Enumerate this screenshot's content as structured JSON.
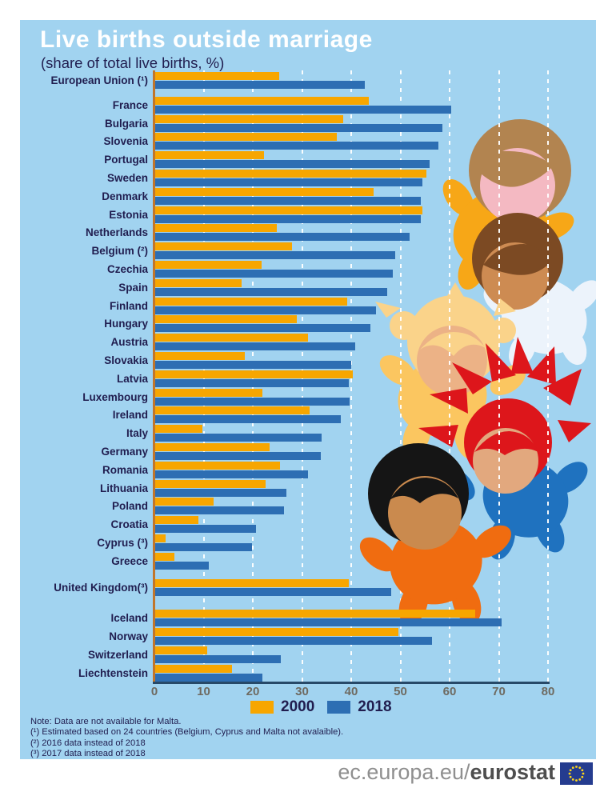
{
  "title": "Live births outside marriage",
  "subtitle": "(share of total live births, %)",
  "chart_data": {
    "type": "bar",
    "orientation": "horizontal",
    "title": "Live births outside marriage",
    "subtitle": "(share of total live births, %)",
    "xlim": [
      0,
      80
    ],
    "xticks": [
      0,
      10,
      20,
      30,
      40,
      50,
      60,
      70,
      80
    ],
    "gridlines": "white dashed vertical",
    "legend_position": "bottom",
    "series": [
      {
        "name": "2000",
        "color": "#f7a600"
      },
      {
        "name": "2018",
        "color": "#2d6eb3"
      }
    ],
    "rows": [
      {
        "label": "European Union (¹)",
        "v2000": 25.4,
        "v2018": 42.7
      },
      {
        "label": "France",
        "v2000": 43.6,
        "v2018": 60.4,
        "extra_gap": 8
      },
      {
        "label": "Bulgaria",
        "v2000": 38.4,
        "v2018": 58.5
      },
      {
        "label": "Slovenia",
        "v2000": 37.1,
        "v2018": 57.7
      },
      {
        "label": "Portugal",
        "v2000": 22.2,
        "v2018": 55.9
      },
      {
        "label": "Sweden",
        "v2000": 55.3,
        "v2018": 54.5
      },
      {
        "label": "Denmark",
        "v2000": 44.6,
        "v2018": 54.2
      },
      {
        "label": "Estonia",
        "v2000": 54.5,
        "v2018": 54.1
      },
      {
        "label": "Netherlands",
        "v2000": 24.9,
        "v2018": 51.9
      },
      {
        "label": "Belgium (²)",
        "v2000": 28.0,
        "v2018": 49.0
      },
      {
        "label": "Czechia",
        "v2000": 21.8,
        "v2018": 48.5
      },
      {
        "label": "Spain",
        "v2000": 17.7,
        "v2018": 47.3
      },
      {
        "label": "Finland",
        "v2000": 39.2,
        "v2018": 45.0
      },
      {
        "label": "Hungary",
        "v2000": 29.0,
        "v2018": 43.9
      },
      {
        "label": "Austria",
        "v2000": 31.3,
        "v2018": 40.8
      },
      {
        "label": "Slovakia",
        "v2000": 18.3,
        "v2018": 40.0
      },
      {
        "label": "Latvia",
        "v2000": 40.3,
        "v2018": 39.5
      },
      {
        "label": "Luxembourg",
        "v2000": 21.9,
        "v2018": 39.7
      },
      {
        "label": "Ireland",
        "v2000": 31.5,
        "v2018": 37.9
      },
      {
        "label": "Italy",
        "v2000": 9.7,
        "v2018": 34.0
      },
      {
        "label": "Germany",
        "v2000": 23.4,
        "v2018": 33.9
      },
      {
        "label": "Romania",
        "v2000": 25.5,
        "v2018": 31.3
      },
      {
        "label": "Lithuania",
        "v2000": 22.6,
        "v2018": 26.9
      },
      {
        "label": "Poland",
        "v2000": 12.1,
        "v2018": 26.4
      },
      {
        "label": "Croatia",
        "v2000": 9.0,
        "v2018": 20.7
      },
      {
        "label": "Cyprus (³)",
        "v2000": 2.3,
        "v2018": 19.8
      },
      {
        "label": "Greece",
        "v2000": 4.0,
        "v2018": 11.1
      },
      {
        "label": "United Kingdom(³)",
        "v2000": 39.5,
        "v2018": 48.2,
        "extra_gap": 10
      },
      {
        "label": "Iceland",
        "v2000": 65.2,
        "v2018": 70.5,
        "extra_gap": 16
      },
      {
        "label": "Norway",
        "v2000": 49.6,
        "v2018": 56.4
      },
      {
        "label": "Switzerland",
        "v2000": 10.7,
        "v2018": 25.7
      },
      {
        "label": "Liechtenstein",
        "v2000": 15.7,
        "v2018": 21.9
      }
    ]
  },
  "notes": [
    "Note: Data are not available for Malta.",
    "(¹) Estimated based on 24 countries (Belgium, Cyprus and Malta not avalaible).",
    "(²) 2016 data instead of 2018",
    "(³) 2017 data instead of 2018"
  ],
  "footer": {
    "url_prefix": "ec.europa.eu/",
    "url_bold": "eurostat",
    "flag_icon": "eu-flag"
  },
  "colors": {
    "panel_bg": "#a1d3f0",
    "bar_2000": "#f7a600",
    "bar_2018": "#2d6eb3",
    "title_text": "#ffffff",
    "navy_text": "#201d4f",
    "yaxis_line": "#c0762c",
    "xaxis_line": "#274968",
    "tick_text": "#6e6a61",
    "footer_gray": "#8f8f8f",
    "footer_dark": "#4e4e4e",
    "flag_blue": "#253c8f",
    "flag_stars": "#ffd617"
  },
  "illustration": {
    "babies": [
      {
        "name": "baby-brown-hair",
        "hair": "#b28450",
        "skin": "#f4b9c2",
        "body": "#f7a717"
      },
      {
        "name": "baby-dark-brown-hair",
        "hair": "#7c4a23",
        "skin": "#cd8b52",
        "body": "#ecf3fb"
      },
      {
        "name": "baby-blonde-pigtails",
        "hair": "#fad38a",
        "skin": "#ecb286",
        "body": "#fbc660"
      },
      {
        "name": "baby-red-spiky-hair",
        "hair": "#dd161b",
        "skin": "#e2a87e",
        "body": "#1f72bf"
      },
      {
        "name": "baby-black-hair",
        "hair": "#151515",
        "skin": "#ca8a4e",
        "body": "#f06c10"
      }
    ]
  }
}
